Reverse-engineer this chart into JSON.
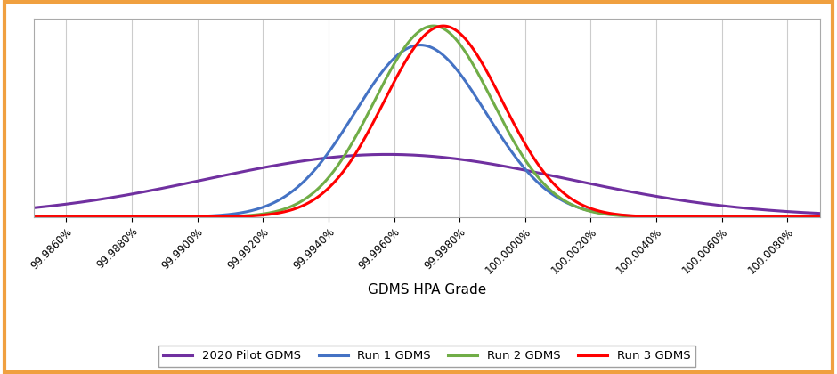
{
  "title": "",
  "xlabel": "GDMS HPA Grade",
  "curves": [
    {
      "label": "2020 Pilot GDMS",
      "color": "#7030A0",
      "mean": 99.9958,
      "std": 0.0055,
      "linewidth": 2.2
    },
    {
      "label": "Run 1 GDMS",
      "color": "#4472C4",
      "mean": 99.9968,
      "std": 0.002,
      "linewidth": 2.2
    },
    {
      "label": "Run 2 GDMS",
      "color": "#70AD47",
      "mean": 99.9972,
      "std": 0.0018,
      "linewidth": 2.2
    },
    {
      "label": "Run 3 GDMS",
      "color": "#FF0000",
      "mean": 99.9975,
      "std": 0.0018,
      "linewidth": 2.2
    }
  ],
  "xticks": [
    99.986,
    99.988,
    99.99,
    99.992,
    99.994,
    99.996,
    99.998,
    100.0,
    100.002,
    100.004,
    100.006,
    100.008
  ],
  "xmin": 99.985,
  "xmax": 100.009,
  "ymin": 0,
  "ymax": 230,
  "grid_color": "#CCCCCC",
  "background_color": "#FFFFFF",
  "outer_border_color": "#F0A040",
  "xlabel_fontsize": 11,
  "tick_fontsize": 8.5,
  "legend_fontsize": 9.5
}
